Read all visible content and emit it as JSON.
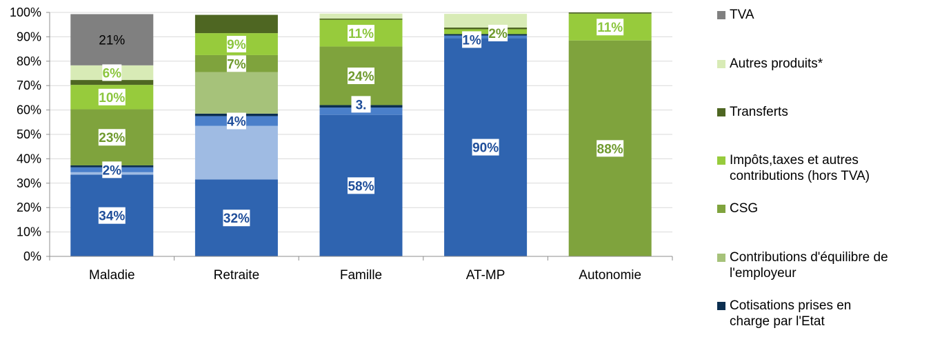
{
  "chart_data": {
    "type": "bar",
    "stacked": true,
    "categories": [
      "Maladie",
      "Retraite",
      "Famille",
      "AT-MP",
      "Autonomie"
    ],
    "ylim": [
      0,
      100
    ],
    "yticks": [
      "0%",
      "10%",
      "20%",
      "30%",
      "40%",
      "50%",
      "60%",
      "70%",
      "80%",
      "90%",
      "100%"
    ],
    "legend_position": "right",
    "series": [
      {
        "name": "",
        "color": "#2f64b0",
        "values": [
          33.5,
          31.5,
          58,
          89.5,
          0
        ]
      },
      {
        "name": "",
        "color": "#9fbbe3",
        "values": [
          1,
          22,
          0,
          0,
          0
        ]
      },
      {
        "name": "",
        "color": "#4a7fca",
        "values": [
          2,
          4,
          3,
          1,
          0
        ]
      },
      {
        "name": "Cotisations prises en charge par l'Etat",
        "color": "#0b2e50",
        "values": [
          0.8,
          1,
          1,
          0.6,
          0
        ]
      },
      {
        "name": "Contributions d'équilibre de l'employeur",
        "color": "#a6c27a",
        "values": [
          0,
          17,
          0,
          0,
          0
        ]
      },
      {
        "name": "CSG",
        "color": "#7fa33d",
        "values": [
          23,
          7,
          24,
          0,
          88.5
        ]
      },
      {
        "name": "Impôts,taxes et autres contributions (hors TVA)",
        "color": "#97cb3c",
        "values": [
          10,
          9,
          11,
          2,
          11
        ]
      },
      {
        "name": "Transferts",
        "color": "#4e6622",
        "values": [
          2,
          7.5,
          0.5,
          0.7,
          0.5
        ]
      },
      {
        "name": "Autres produits*",
        "color": "#d8ebb6",
        "values": [
          6,
          0,
          2,
          5.6,
          0
        ]
      },
      {
        "name": "TVA",
        "color": "#808080",
        "values": [
          21,
          0,
          0,
          0,
          0
        ]
      }
    ],
    "data_labels": [
      {
        "category": 0,
        "series": 0,
        "text": "34%",
        "style": "blue"
      },
      {
        "category": 0,
        "series": 2,
        "text": "2%",
        "style": "blue"
      },
      {
        "category": 0,
        "series": 5,
        "text": "23%",
        "style": "olive"
      },
      {
        "category": 0,
        "series": 6,
        "text": "10%",
        "style": "lime"
      },
      {
        "category": 0,
        "series": 8,
        "text": "6%",
        "style": "lime"
      },
      {
        "category": 0,
        "series": 9,
        "text": "21%",
        "style": "plain"
      },
      {
        "category": 1,
        "series": 0,
        "text": "32%",
        "style": "blue"
      },
      {
        "category": 1,
        "series": 2,
        "text": "4%",
        "style": "blue"
      },
      {
        "category": 1,
        "series": 5,
        "text": "7%",
        "style": "olive"
      },
      {
        "category": 1,
        "series": 6,
        "text": "9%",
        "style": "lime"
      },
      {
        "category": 2,
        "series": 0,
        "text": "58%",
        "style": "blue"
      },
      {
        "category": 2,
        "series": 2,
        "text": "3.",
        "style": "blue"
      },
      {
        "category": 2,
        "series": 5,
        "text": "24%",
        "style": "olive"
      },
      {
        "category": 2,
        "series": 6,
        "text": "11%",
        "style": "lime"
      },
      {
        "category": 3,
        "series": 0,
        "text": "90%",
        "style": "blue"
      },
      {
        "category": 3,
        "series": 2,
        "text": "1%",
        "style": "blue"
      },
      {
        "category": 3,
        "series": 6,
        "text": "2%",
        "style": "olive"
      },
      {
        "category": 4,
        "series": 5,
        "text": "88%",
        "style": "olive"
      },
      {
        "category": 4,
        "series": 6,
        "text": "11%",
        "style": "lime"
      }
    ]
  },
  "legend": [
    {
      "label": "TVA",
      "color": "#808080"
    },
    {
      "label": "Autres produits*",
      "color": "#d8ebb6"
    },
    {
      "label": "Transferts",
      "color": "#4e6622"
    },
    {
      "label": "Impôts,taxes et autres contributions (hors TVA)",
      "color": "#97cb3c"
    },
    {
      "label": "CSG",
      "color": "#7fa33d"
    },
    {
      "label": "Contributions d'équilibre de l'employeur",
      "color": "#a6c27a"
    },
    {
      "label": "Cotisations prises en charge par l'Etat",
      "color": "#0b2e50"
    }
  ]
}
